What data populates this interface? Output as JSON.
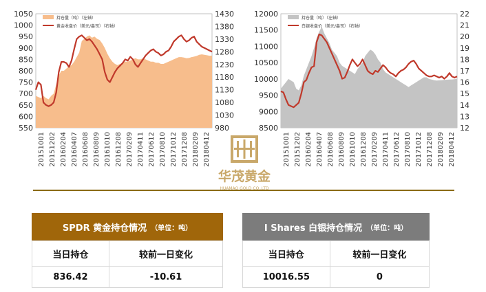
{
  "chart_data": [
    {
      "type": "area+line",
      "x_ticks": [
        "20151001",
        "20151202",
        "20160204",
        "20160407",
        "20160608",
        "20160809",
        "20161010",
        "20161208",
        "20170209",
        "20170411",
        "20170612",
        "20170810",
        "20171012",
        "20171208",
        "20180209",
        "20180412"
      ],
      "y_left": {
        "min": 550,
        "max": 1050,
        "ticks": [
          550,
          600,
          650,
          700,
          750,
          800,
          850,
          900,
          950,
          1000,
          1050
        ]
      },
      "y_right": {
        "min": 980,
        "max": 1430,
        "ticks": [
          980,
          1030,
          1080,
          1130,
          1180,
          1230,
          1280,
          1330,
          1380,
          1430
        ]
      },
      "series": [
        {
          "name": "持仓量（吨）（左轴）",
          "axis": "left",
          "kind": "area",
          "color": "#f7bd8c",
          "values": [
            690,
            685,
            680,
            690,
            680,
            675,
            690,
            700,
            740,
            780,
            800,
            800,
            810,
            820,
            825,
            840,
            860,
            880,
            930,
            940,
            950,
            955,
            945,
            950,
            940,
            935,
            920,
            900,
            875,
            855,
            840,
            830,
            825,
            830,
            835,
            840,
            840,
            845,
            850,
            855,
            850,
            850,
            855,
            850,
            845,
            840,
            840,
            835,
            835,
            830,
            830,
            835,
            840,
            845,
            850,
            855,
            860,
            860,
            858,
            855,
            856,
            860,
            862,
            865,
            870,
            872,
            870,
            868,
            866,
            866
          ]
        },
        {
          "name": "黄金收盘价（美元/盎司）（右轴）",
          "axis": "right",
          "kind": "line",
          "color": "#c0392b",
          "values": [
            1130,
            1160,
            1150,
            1080,
            1070,
            1065,
            1070,
            1080,
            1120,
            1200,
            1240,
            1240,
            1235,
            1220,
            1245,
            1290,
            1330,
            1340,
            1345,
            1335,
            1325,
            1330,
            1320,
            1305,
            1290,
            1270,
            1250,
            1200,
            1170,
            1160,
            1180,
            1200,
            1215,
            1225,
            1235,
            1250,
            1245,
            1260,
            1250,
            1230,
            1220,
            1235,
            1250,
            1265,
            1275,
            1285,
            1290,
            1280,
            1275,
            1265,
            1270,
            1280,
            1285,
            1300,
            1320,
            1330,
            1340,
            1345,
            1330,
            1320,
            1325,
            1335,
            1340,
            1320,
            1310,
            1300,
            1295,
            1290,
            1285,
            1280
          ]
        }
      ]
    },
    {
      "type": "area+line",
      "x_ticks": [
        "20151001",
        "20151202",
        "20160204",
        "20160407",
        "20160608",
        "20160809",
        "20161010",
        "20161208",
        "20170209",
        "20170411",
        "20170612",
        "20170810",
        "20171012",
        "20171208",
        "20180209",
        "20180412"
      ],
      "y_left": {
        "min": 8500,
        "max": 12000,
        "ticks": [
          8500,
          9000,
          9500,
          10000,
          10500,
          11000,
          11500,
          12000
        ]
      },
      "y_right": {
        "min": 12,
        "max": 22,
        "ticks": [
          12,
          13,
          14,
          15,
          16,
          17,
          18,
          19,
          20,
          21,
          22
        ]
      },
      "series": [
        {
          "name": "持仓量（吨）（左轴）",
          "axis": "left",
          "kind": "area",
          "color": "#c4c4c4",
          "values": [
            9700,
            9800,
            9900,
            10000,
            9950,
            9900,
            9700,
            9650,
            9800,
            10100,
            10300,
            10500,
            10700,
            10950,
            11250,
            11450,
            11600,
            11400,
            11250,
            11100,
            10900,
            10800,
            10700,
            10500,
            10400,
            10350,
            10300,
            10250,
            10200,
            10150,
            10300,
            10400,
            10500,
            10700,
            10800,
            10900,
            10850,
            10750,
            10600,
            10500,
            10300,
            10200,
            10150,
            10100,
            10050,
            10000,
            9950,
            9900,
            9850,
            9800,
            9750,
            9800,
            9850,
            9900,
            9950,
            10000,
            10050,
            10050,
            10000,
            9980,
            9960,
            9950,
            9955,
            9960,
            9970,
            9975,
            9980,
            9985,
            9990,
            10000
          ]
        },
        {
          "name": "白银收盘价（美元/盎司）（右轴）",
          "axis": "right",
          "kind": "line",
          "color": "#c0392b",
          "values": [
            15.2,
            15.1,
            14.5,
            14.0,
            13.9,
            13.8,
            14.0,
            14.2,
            15.0,
            16.0,
            16.2,
            16.8,
            17.3,
            17.4,
            19.5,
            20.2,
            20.1,
            19.8,
            19.5,
            19.0,
            18.5,
            18.0,
            17.5,
            17.0,
            16.3,
            16.4,
            16.9,
            17.5,
            18.0,
            17.7,
            17.4,
            17.6,
            18.0,
            17.5,
            17.0,
            16.8,
            16.7,
            17.0,
            16.9,
            17.2,
            17.5,
            17.3,
            17.0,
            16.8,
            16.7,
            16.5,
            16.8,
            17.0,
            17.1,
            17.3,
            17.6,
            17.8,
            17.9,
            17.6,
            17.2,
            17.0,
            16.8,
            16.6,
            16.5,
            16.5,
            16.6,
            16.5,
            16.4,
            16.5,
            16.3,
            16.5,
            16.8,
            16.5,
            16.4,
            16.5
          ]
        }
      ]
    }
  ],
  "gold": {
    "title": "SPDR 黄金持仓情况",
    "unit": "（单位：吨）",
    "col_headers": [
      "当日持仓",
      "较前一日变化"
    ],
    "values": [
      "836.42",
      "-10.61"
    ]
  },
  "silver": {
    "title": "I Shares 白银持仓情况",
    "unit": "（单位：吨）",
    "col_headers": [
      "当日持仓",
      "较前一日变化"
    ],
    "values": [
      "10016.55",
      "0"
    ]
  },
  "logo": {
    "name": "华茂黄金",
    "sub": "HUAMAO GOLD CO.,LTD"
  }
}
